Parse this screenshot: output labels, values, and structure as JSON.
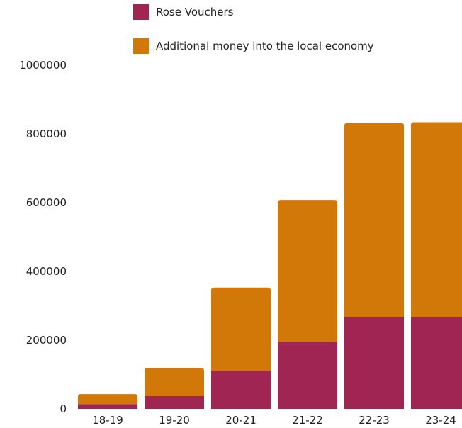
{
  "chart_data": {
    "type": "bar",
    "stacked": true,
    "categories": [
      "18-19",
      "19-20",
      "20-21",
      "21-22",
      "22-23",
      "23-24"
    ],
    "series": [
      {
        "name": "Rose Vouchers",
        "color": "#a02552",
        "values": [
          14000,
          37000,
          111000,
          195000,
          267000,
          267000
        ]
      },
      {
        "name": "Additional money into the local economy",
        "color": "#d27808",
        "values": [
          29000,
          82000,
          242000,
          413000,
          565000,
          567000
        ]
      }
    ],
    "yticks": [
      "0",
      "200000",
      "400000",
      "600000",
      "800000",
      "1000000"
    ],
    "ylim": [
      0,
      1000000
    ],
    "grid": false,
    "legend_position": "top"
  }
}
